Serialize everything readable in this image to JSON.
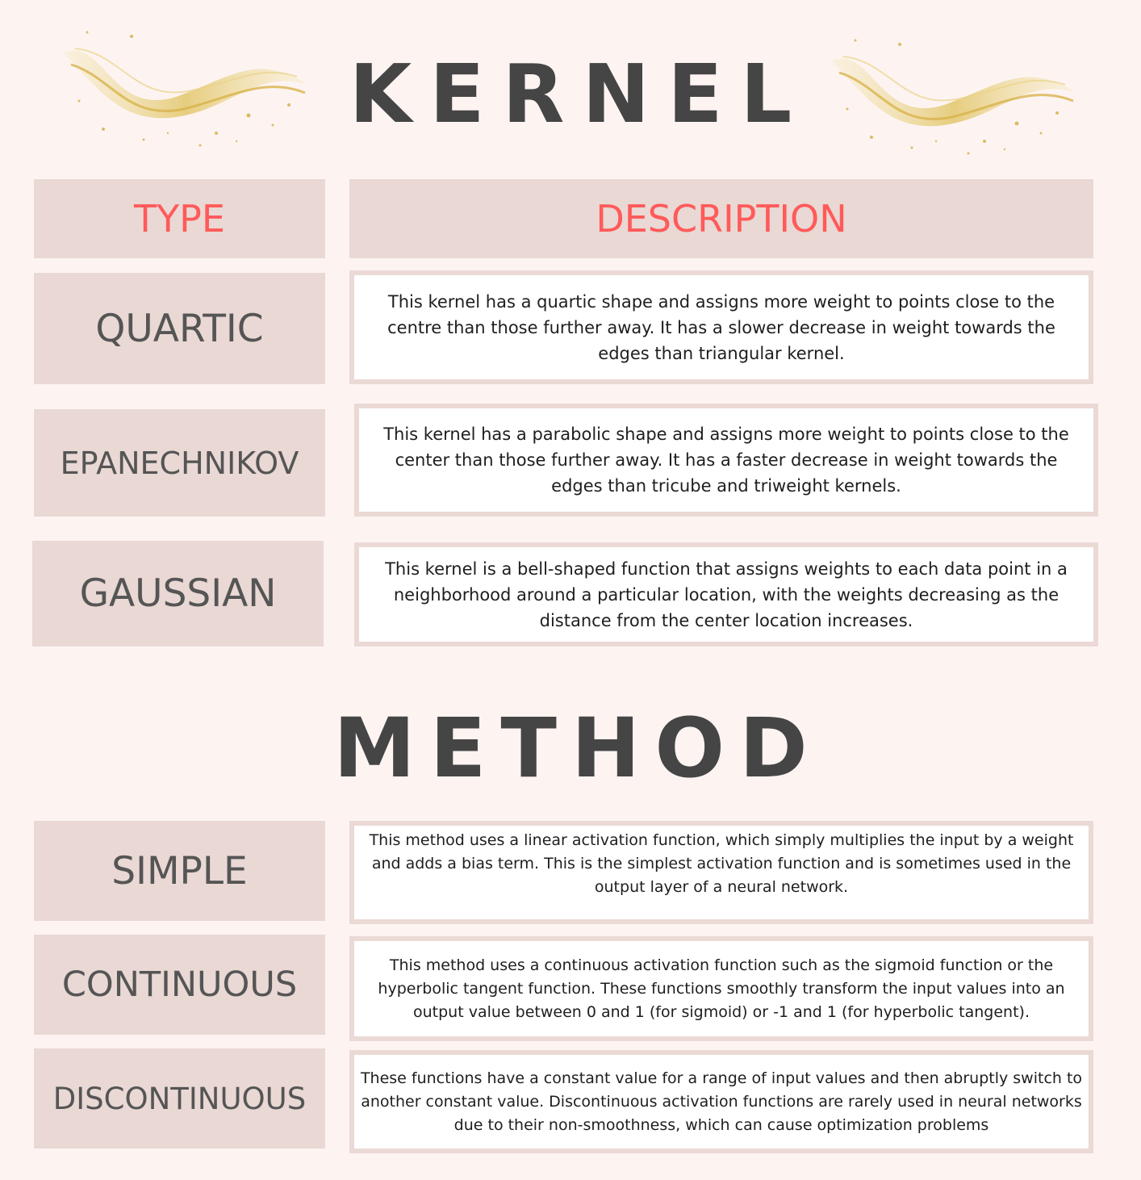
{
  "kernel": {
    "title": "KERNEL",
    "header": {
      "type": "TYPE",
      "description": "DESCRIPTION"
    },
    "rows": [
      {
        "type": "QUARTIC",
        "description": "This kernel has a quartic shape and assigns more weight to points close to the centre than those further away. It has a slower decrease in weight towards the edges than triangular kernel."
      },
      {
        "type": "EPANECHNIKOV",
        "description": "This kernel has a parabolic shape and assigns more weight to points close to the center than those further away. It has a faster decrease in weight towards the edges than tricube and triweight kernels."
      },
      {
        "type": "GAUSSIAN",
        "description": "This kernel is a bell-shaped function that assigns weights to each data point in a neighborhood around a particular location, with the weights decreasing as the distance from the center location increases."
      }
    ]
  },
  "method": {
    "title": "METHOD",
    "rows": [
      {
        "type": "SIMPLE",
        "description": "This method uses a linear activation function, which simply multiplies the input by a weight and adds a bias term. This is the simplest activation function and is sometimes used in the output layer of a neural network."
      },
      {
        "type": "CONTINUOUS",
        "description": "This method uses a continuous activation function such as the sigmoid function or the hyperbolic tangent function. These functions smoothly transform the input values into an output value between 0 and 1 (for sigmoid) or -1 and 1 (for hyperbolic tangent)."
      },
      {
        "type": "DISCONTINUOUS",
        "description": "These functions have a constant value for a range of input values and then abruptly switch to another constant value. Discontinuous activation functions are rarely used in neural networks due to their non-smoothness, which can cause optimization problems"
      }
    ]
  },
  "colors": {
    "background": "#fdf4f2",
    "cell": "#e9d8d4",
    "header_text": "#ff5a5a",
    "title_text": "#454545",
    "gold": "#e2c66a"
  },
  "icons": {
    "decoration": "gold-glitter-swoosh"
  }
}
